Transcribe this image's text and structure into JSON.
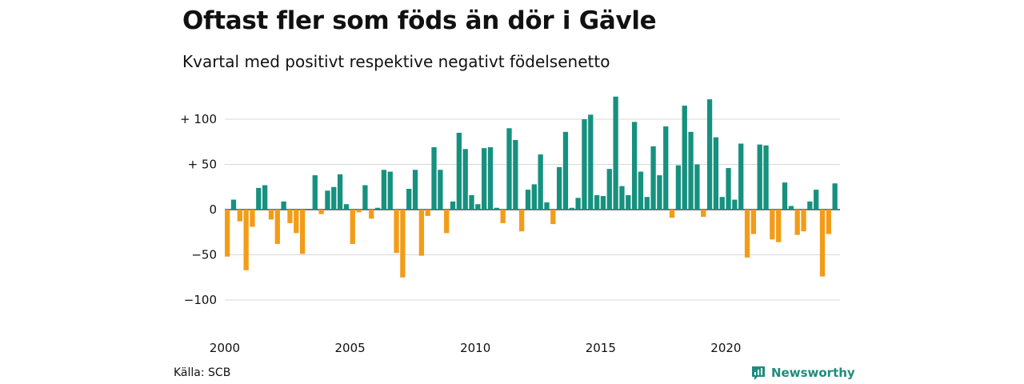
{
  "colors": {
    "positive": "#17917f",
    "negative": "#f29c18",
    "grid": "#d9d9d9",
    "brand": "#1f8c7d"
  },
  "footer": {
    "source": "Källa: SCB",
    "brand": "Newsworthy",
    "brand_icon": "bar-chart-logo-icon"
  },
  "chart_data": {
    "type": "bar",
    "title": "Oftast fler som föds än dör i Gävle",
    "subtitle": "Kvartal med positivt respektive negativt födelsenetto",
    "xlabel": "",
    "ylabel": "",
    "ylim": [
      -125,
      130
    ],
    "grid": true,
    "y_ticks": [
      {
        "value": 100,
        "label": "+ 100"
      },
      {
        "value": 50,
        "label": "+  50"
      },
      {
        "value": 0,
        "label": "0"
      },
      {
        "value": -50,
        "label": "−50"
      },
      {
        "value": -100,
        "label": "−100"
      }
    ],
    "x_ticks": [
      {
        "year": 2000,
        "label": "2000"
      },
      {
        "year": 2005,
        "label": "2005"
      },
      {
        "year": 2010,
        "label": "2010"
      },
      {
        "year": 2015,
        "label": "2015"
      },
      {
        "year": 2020,
        "label": "2020"
      }
    ],
    "start_year": 2000,
    "values": [
      -52,
      11,
      -13,
      -67,
      -19,
      24,
      27,
      -11,
      -38,
      9,
      -15,
      -26,
      -49,
      0,
      38,
      -5,
      21,
      25,
      39,
      6,
      -38,
      -3,
      27,
      -10,
      2,
      44,
      42,
      -48,
      -75,
      23,
      44,
      -51,
      -7,
      69,
      44,
      -26,
      9,
      85,
      67,
      16,
      6,
      68,
      69,
      2,
      -15,
      90,
      77,
      -24,
      22,
      28,
      61,
      8,
      -16,
      47,
      86,
      2,
      13,
      100,
      105,
      16,
      15,
      45,
      125,
      26,
      16,
      97,
      42,
      14,
      70,
      38,
      92,
      -9,
      49,
      115,
      86,
      50,
      -8,
      122,
      80,
      14,
      46,
      11,
      73,
      -53,
      -27,
      72,
      71,
      -33,
      -36,
      30,
      4,
      -28,
      -24,
      9,
      22,
      -74,
      -27,
      29
    ]
  }
}
